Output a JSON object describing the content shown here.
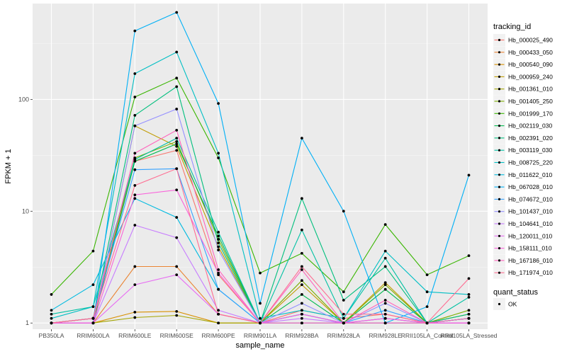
{
  "chart_data": {
    "type": "line",
    "xlabel": "sample_name",
    "ylabel": "FPKM + 1",
    "y_scale": "log10",
    "ylim": [
      0.88,
      720
    ],
    "y_ticks": [
      1,
      10,
      100
    ],
    "y_tick_labels": [
      "1",
      "10",
      "100"
    ],
    "grid": true,
    "legend_position": "right",
    "categories": [
      "PB350LA",
      "RRIM600LA",
      "RRIM600LE",
      "RRIM600SE",
      "RRIM600PE",
      "RRIM901LA",
      "RRIM928BA",
      "RRIM928LA",
      "RRIM928LE",
      "RRII105LA_Control",
      "RRII105LA_Stressed"
    ],
    "legend_title": "tracking_id",
    "series": [
      {
        "name": "Hb_000025_490",
        "color": "#F8766D",
        "values": [
          1.0,
          1.1,
          28,
          35,
          2.7,
          1.0,
          1.3,
          1.1,
          1.2,
          1.0,
          1.1
        ]
      },
      {
        "name": "Hb_000433_050",
        "color": "#EA8331",
        "values": [
          1.0,
          1.0,
          3.2,
          3.2,
          1.2,
          1.0,
          1.0,
          1.0,
          1.0,
          1.0,
          1.0
        ]
      },
      {
        "name": "Hb_000540_090",
        "color": "#D89000",
        "values": [
          1.0,
          1.0,
          1.25,
          1.27,
          1.0,
          1.0,
          1.0,
          1.0,
          1.0,
          1.0,
          1.0
        ]
      },
      {
        "name": "Hb_000959_240",
        "color": "#C09B00",
        "values": [
          1.0,
          1.0,
          58,
          38,
          4.8,
          1.0,
          2.2,
          1.0,
          2.3,
          1.0,
          1.1
        ]
      },
      {
        "name": "Hb_001361_010",
        "color": "#A3A500",
        "values": [
          1.0,
          1.0,
          1.12,
          1.17,
          1.0,
          1.0,
          1.0,
          1.0,
          1.0,
          1.0,
          1.2
        ]
      },
      {
        "name": "Hb_001405_250",
        "color": "#7CAE00",
        "values": [
          1.0,
          1.1,
          30,
          42,
          5.6,
          1.0,
          2.4,
          1.0,
          2.2,
          1.0,
          1.3
        ]
      },
      {
        "name": "Hb_001999_170",
        "color": "#39B600",
        "values": [
          1.8,
          4.4,
          105,
          155,
          30,
          2.8,
          4.2,
          1.9,
          7.6,
          2.7,
          4.0
        ]
      },
      {
        "name": "Hb_002119_030",
        "color": "#00BB4E",
        "values": [
          1.0,
          1.0,
          28,
          40,
          6.0,
          1.0,
          1.8,
          1.0,
          2.0,
          1.0,
          1.1
        ]
      },
      {
        "name": "Hb_002391_020",
        "color": "#00BF7D",
        "values": [
          1.0,
          1.1,
          72,
          130,
          5.2,
          1.0,
          13,
          1.6,
          3.2,
          1.0,
          1.2
        ]
      },
      {
        "name": "Hb_003119_030",
        "color": "#00C1A3",
        "values": [
          1.2,
          1.4,
          29,
          45,
          6.5,
          1.0,
          6.8,
          1.1,
          3.8,
          1.0,
          1.7
        ]
      },
      {
        "name": "Hb_008725_220",
        "color": "#00BFC4",
        "values": [
          1.1,
          1.4,
          170,
          265,
          33,
          1.1,
          1.3,
          1.1,
          4.4,
          1.9,
          1.8
        ]
      },
      {
        "name": "Hb_011622_010",
        "color": "#00BAE0",
        "values": [
          1.3,
          2.2,
          13,
          8.8,
          2.0,
          1.0,
          1.2,
          1.0,
          1.1,
          1.0,
          1.1
        ]
      },
      {
        "name": "Hb_067028_010",
        "color": "#00B0F6",
        "values": [
          1.0,
          1.0,
          410,
          600,
          92,
          1.5,
          45,
          10,
          1.0,
          1.4,
          21
        ]
      },
      {
        "name": "Hb_074672_010",
        "color": "#35A2FF",
        "values": [
          1.0,
          1.1,
          23.5,
          24,
          2.0,
          1.0,
          1.2,
          1.0,
          1.3,
          1.0,
          1.0
        ]
      },
      {
        "name": "Hb_101437_010",
        "color": "#9590FF",
        "values": [
          1.0,
          1.0,
          58,
          82,
          4.5,
          1.0,
          1.5,
          1.0,
          1.5,
          1.0,
          1.0
        ]
      },
      {
        "name": "Hb_104641_010",
        "color": "#C77CFF",
        "values": [
          1.0,
          1.0,
          7.5,
          5.8,
          1.3,
          1.0,
          1.1,
          1.0,
          1.1,
          1.0,
          1.0
        ]
      },
      {
        "name": "Hb_120011_010",
        "color": "#E76BF3",
        "values": [
          1.0,
          1.0,
          2.2,
          2.7,
          1.2,
          1.0,
          1.0,
          1.0,
          1.0,
          1.0,
          1.0
        ]
      },
      {
        "name": "Hb_158111_010",
        "color": "#FA62DB",
        "values": [
          1.0,
          1.0,
          14,
          15.5,
          2.8,
          1.0,
          1.2,
          1.0,
          1.1,
          1.0,
          1.0
        ]
      },
      {
        "name": "Hb_167186_010",
        "color": "#FF62BC",
        "values": [
          1.0,
          1.1,
          33,
          53,
          3.0,
          1.0,
          3.0,
          1.0,
          1.6,
          1.0,
          1.1
        ]
      },
      {
        "name": "Hb_171974_010",
        "color": "#FF6C91",
        "values": [
          1.0,
          1.1,
          17,
          24,
          1.2,
          1.0,
          3.2,
          1.2,
          1.2,
          1.0,
          2.5
        ]
      }
    ]
  },
  "legend2": {
    "title": "quant_status",
    "label": "OK"
  }
}
